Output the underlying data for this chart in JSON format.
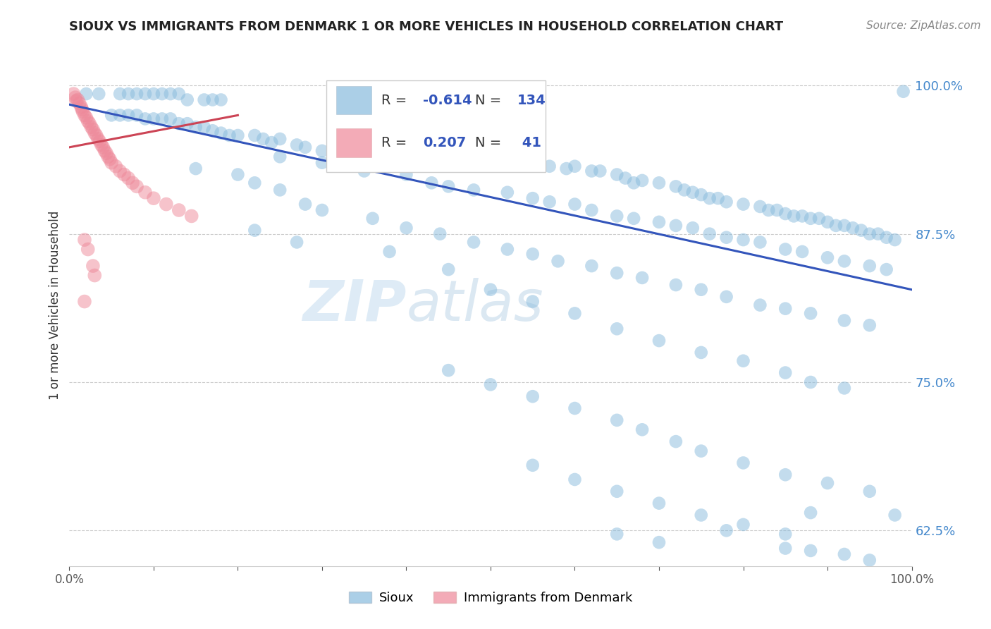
{
  "title": "SIOUX VS IMMIGRANTS FROM DENMARK 1 OR MORE VEHICLES IN HOUSEHOLD CORRELATION CHART",
  "source_text": "Source: ZipAtlas.com",
  "ylabel": "1 or more Vehicles in Household",
  "xlim": [
    0.0,
    1.0
  ],
  "ylim": [
    0.595,
    1.035
  ],
  "yticks": [
    0.625,
    0.75,
    0.875,
    1.0
  ],
  "ytick_labels": [
    "62.5%",
    "75.0%",
    "87.5%",
    "100.0%"
  ],
  "xticks": [
    0.0,
    0.1,
    0.2,
    0.3,
    0.4,
    0.5,
    0.6,
    0.7,
    0.8,
    0.9,
    1.0
  ],
  "xtick_labels": [
    "0.0%",
    "",
    "",
    "",
    "",
    "",
    "",
    "",
    "",
    "",
    "100.0%"
  ],
  "sioux_color": "#88bbdd",
  "denmark_color": "#ee8899",
  "trend_blue": "#3355bb",
  "trend_pink": "#cc4455",
  "watermark_zip": "ZIP",
  "watermark_atlas": "atlas",
  "blue_trend_x": [
    0.0,
    1.0
  ],
  "blue_trend_y": [
    0.984,
    0.828
  ],
  "pink_trend_x": [
    0.0,
    0.2
  ],
  "pink_trend_y": [
    0.948,
    0.975
  ],
  "sioux_points": [
    [
      0.02,
      0.993
    ],
    [
      0.035,
      0.993
    ],
    [
      0.06,
      0.993
    ],
    [
      0.07,
      0.993
    ],
    [
      0.08,
      0.993
    ],
    [
      0.09,
      0.993
    ],
    [
      0.1,
      0.993
    ],
    [
      0.11,
      0.993
    ],
    [
      0.12,
      0.993
    ],
    [
      0.13,
      0.993
    ],
    [
      0.14,
      0.988
    ],
    [
      0.16,
      0.988
    ],
    [
      0.17,
      0.988
    ],
    [
      0.18,
      0.988
    ],
    [
      0.05,
      0.975
    ],
    [
      0.06,
      0.975
    ],
    [
      0.07,
      0.975
    ],
    [
      0.08,
      0.975
    ],
    [
      0.09,
      0.972
    ],
    [
      0.1,
      0.972
    ],
    [
      0.11,
      0.972
    ],
    [
      0.12,
      0.972
    ],
    [
      0.13,
      0.968
    ],
    [
      0.14,
      0.968
    ],
    [
      0.15,
      0.965
    ],
    [
      0.16,
      0.965
    ],
    [
      0.17,
      0.962
    ],
    [
      0.18,
      0.96
    ],
    [
      0.19,
      0.958
    ],
    [
      0.2,
      0.958
    ],
    [
      0.22,
      0.958
    ],
    [
      0.23,
      0.955
    ],
    [
      0.24,
      0.952
    ],
    [
      0.25,
      0.955
    ],
    [
      0.27,
      0.95
    ],
    [
      0.28,
      0.948
    ],
    [
      0.3,
      0.945
    ],
    [
      0.33,
      0.955
    ],
    [
      0.36,
      0.952
    ],
    [
      0.38,
      0.948
    ],
    [
      0.4,
      0.945
    ],
    [
      0.43,
      0.945
    ],
    [
      0.45,
      0.942
    ],
    [
      0.48,
      0.94
    ],
    [
      0.5,
      0.938
    ],
    [
      0.52,
      0.935
    ],
    [
      0.55,
      0.935
    ],
    [
      0.57,
      0.932
    ],
    [
      0.59,
      0.93
    ],
    [
      0.6,
      0.932
    ],
    [
      0.62,
      0.928
    ],
    [
      0.63,
      0.928
    ],
    [
      0.65,
      0.925
    ],
    [
      0.66,
      0.922
    ],
    [
      0.67,
      0.918
    ],
    [
      0.68,
      0.92
    ],
    [
      0.7,
      0.918
    ],
    [
      0.72,
      0.915
    ],
    [
      0.73,
      0.912
    ],
    [
      0.74,
      0.91
    ],
    [
      0.75,
      0.908
    ],
    [
      0.76,
      0.905
    ],
    [
      0.77,
      0.905
    ],
    [
      0.78,
      0.902
    ],
    [
      0.8,
      0.9
    ],
    [
      0.82,
      0.898
    ],
    [
      0.83,
      0.895
    ],
    [
      0.84,
      0.895
    ],
    [
      0.85,
      0.892
    ],
    [
      0.86,
      0.89
    ],
    [
      0.87,
      0.89
    ],
    [
      0.88,
      0.888
    ],
    [
      0.89,
      0.888
    ],
    [
      0.9,
      0.885
    ],
    [
      0.91,
      0.882
    ],
    [
      0.92,
      0.882
    ],
    [
      0.93,
      0.88
    ],
    [
      0.94,
      0.878
    ],
    [
      0.95,
      0.875
    ],
    [
      0.96,
      0.875
    ],
    [
      0.97,
      0.872
    ],
    [
      0.98,
      0.87
    ],
    [
      0.99,
      0.995
    ],
    [
      0.25,
      0.94
    ],
    [
      0.3,
      0.935
    ],
    [
      0.35,
      0.928
    ],
    [
      0.4,
      0.925
    ],
    [
      0.43,
      0.918
    ],
    [
      0.45,
      0.915
    ],
    [
      0.48,
      0.912
    ],
    [
      0.52,
      0.91
    ],
    [
      0.55,
      0.905
    ],
    [
      0.57,
      0.902
    ],
    [
      0.6,
      0.9
    ],
    [
      0.62,
      0.895
    ],
    [
      0.65,
      0.89
    ],
    [
      0.67,
      0.888
    ],
    [
      0.7,
      0.885
    ],
    [
      0.72,
      0.882
    ],
    [
      0.74,
      0.88
    ],
    [
      0.76,
      0.875
    ],
    [
      0.78,
      0.872
    ],
    [
      0.8,
      0.87
    ],
    [
      0.82,
      0.868
    ],
    [
      0.85,
      0.862
    ],
    [
      0.87,
      0.86
    ],
    [
      0.9,
      0.855
    ],
    [
      0.92,
      0.852
    ],
    [
      0.95,
      0.848
    ],
    [
      0.97,
      0.845
    ],
    [
      0.15,
      0.93
    ],
    [
      0.2,
      0.925
    ],
    [
      0.22,
      0.918
    ],
    [
      0.25,
      0.912
    ],
    [
      0.28,
      0.9
    ],
    [
      0.3,
      0.895
    ],
    [
      0.36,
      0.888
    ],
    [
      0.4,
      0.88
    ],
    [
      0.44,
      0.875
    ],
    [
      0.48,
      0.868
    ],
    [
      0.52,
      0.862
    ],
    [
      0.55,
      0.858
    ],
    [
      0.58,
      0.852
    ],
    [
      0.62,
      0.848
    ],
    [
      0.65,
      0.842
    ],
    [
      0.68,
      0.838
    ],
    [
      0.72,
      0.832
    ],
    [
      0.75,
      0.828
    ],
    [
      0.78,
      0.822
    ],
    [
      0.82,
      0.815
    ],
    [
      0.85,
      0.812
    ],
    [
      0.88,
      0.808
    ],
    [
      0.92,
      0.802
    ],
    [
      0.95,
      0.798
    ],
    [
      0.22,
      0.878
    ],
    [
      0.27,
      0.868
    ],
    [
      0.38,
      0.86
    ],
    [
      0.45,
      0.845
    ],
    [
      0.5,
      0.828
    ],
    [
      0.55,
      0.818
    ],
    [
      0.6,
      0.808
    ],
    [
      0.65,
      0.795
    ],
    [
      0.7,
      0.785
    ],
    [
      0.75,
      0.775
    ],
    [
      0.8,
      0.768
    ],
    [
      0.85,
      0.758
    ],
    [
      0.88,
      0.75
    ],
    [
      0.92,
      0.745
    ],
    [
      0.45,
      0.76
    ],
    [
      0.5,
      0.748
    ],
    [
      0.55,
      0.738
    ],
    [
      0.6,
      0.728
    ],
    [
      0.65,
      0.718
    ],
    [
      0.68,
      0.71
    ],
    [
      0.72,
      0.7
    ],
    [
      0.75,
      0.692
    ],
    [
      0.8,
      0.682
    ],
    [
      0.85,
      0.672
    ],
    [
      0.9,
      0.665
    ],
    [
      0.95,
      0.658
    ],
    [
      0.55,
      0.68
    ],
    [
      0.6,
      0.668
    ],
    [
      0.65,
      0.658
    ],
    [
      0.7,
      0.648
    ],
    [
      0.75,
      0.638
    ],
    [
      0.8,
      0.63
    ],
    [
      0.85,
      0.622
    ],
    [
      0.88,
      0.64
    ],
    [
      0.65,
      0.622
    ],
    [
      0.7,
      0.615
    ],
    [
      0.78,
      0.625
    ],
    [
      0.85,
      0.61
    ],
    [
      0.88,
      0.608
    ],
    [
      0.92,
      0.605
    ],
    [
      0.95,
      0.6
    ],
    [
      0.98,
      0.638
    ]
  ],
  "denmark_points": [
    [
      0.005,
      0.993
    ],
    [
      0.007,
      0.99
    ],
    [
      0.008,
      0.987
    ],
    [
      0.01,
      0.988
    ],
    [
      0.012,
      0.985
    ],
    [
      0.014,
      0.982
    ],
    [
      0.015,
      0.98
    ],
    [
      0.016,
      0.978
    ],
    [
      0.018,
      0.975
    ],
    [
      0.02,
      0.973
    ],
    [
      0.022,
      0.97
    ],
    [
      0.024,
      0.968
    ],
    [
      0.026,
      0.965
    ],
    [
      0.028,
      0.963
    ],
    [
      0.03,
      0.96
    ],
    [
      0.032,
      0.958
    ],
    [
      0.034,
      0.955
    ],
    [
      0.036,
      0.953
    ],
    [
      0.038,
      0.95
    ],
    [
      0.04,
      0.948
    ],
    [
      0.042,
      0.945
    ],
    [
      0.044,
      0.943
    ],
    [
      0.046,
      0.94
    ],
    [
      0.048,
      0.938
    ],
    [
      0.05,
      0.935
    ],
    [
      0.055,
      0.932
    ],
    [
      0.06,
      0.928
    ],
    [
      0.065,
      0.925
    ],
    [
      0.07,
      0.922
    ],
    [
      0.075,
      0.918
    ],
    [
      0.08,
      0.915
    ],
    [
      0.09,
      0.91
    ],
    [
      0.1,
      0.905
    ],
    [
      0.115,
      0.9
    ],
    [
      0.13,
      0.895
    ],
    [
      0.145,
      0.89
    ],
    [
      0.018,
      0.87
    ],
    [
      0.022,
      0.862
    ],
    [
      0.028,
      0.848
    ],
    [
      0.03,
      0.84
    ],
    [
      0.018,
      0.818
    ]
  ]
}
